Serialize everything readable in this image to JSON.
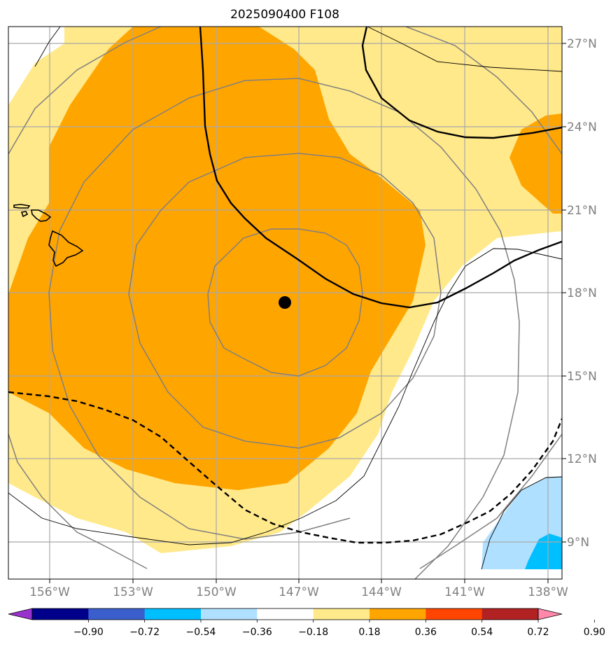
{
  "title": "2025090400 F108",
  "axes": {
    "lon_labels": [
      "156°W",
      "153°W",
      "150°W",
      "147°W",
      "144°W",
      "141°W",
      "138°W"
    ],
    "lat_labels": [
      "27°N",
      "24°N",
      "21°N",
      "18°N",
      "15°N",
      "12°N",
      "9°N"
    ]
  },
  "colorbar": {
    "levels": [
      "−0.90",
      "−0.72",
      "−0.54",
      "−0.36",
      "−0.18",
      "0.18",
      "0.36",
      "0.54",
      "0.72",
      "0.90"
    ],
    "colors": [
      "#9932cc",
      "#00008b",
      "#3a5fcd",
      "#00bfff",
      "#b0e0ff",
      "#ffffff",
      "#ffe98a",
      "#ffa500",
      "#ff4500",
      "#b22222",
      "#ff88aa"
    ]
  },
  "colors": {
    "light_yellow": "#ffe98a",
    "orange": "#ffa500",
    "light_blue": "#b0e0ff",
    "sky_blue": "#00bfff",
    "grid": "#a9a9a9",
    "contour_gray": "#808080",
    "storm_center": "#000000"
  },
  "storm_center": {
    "lon": -147.5,
    "lat": 17.7
  }
}
